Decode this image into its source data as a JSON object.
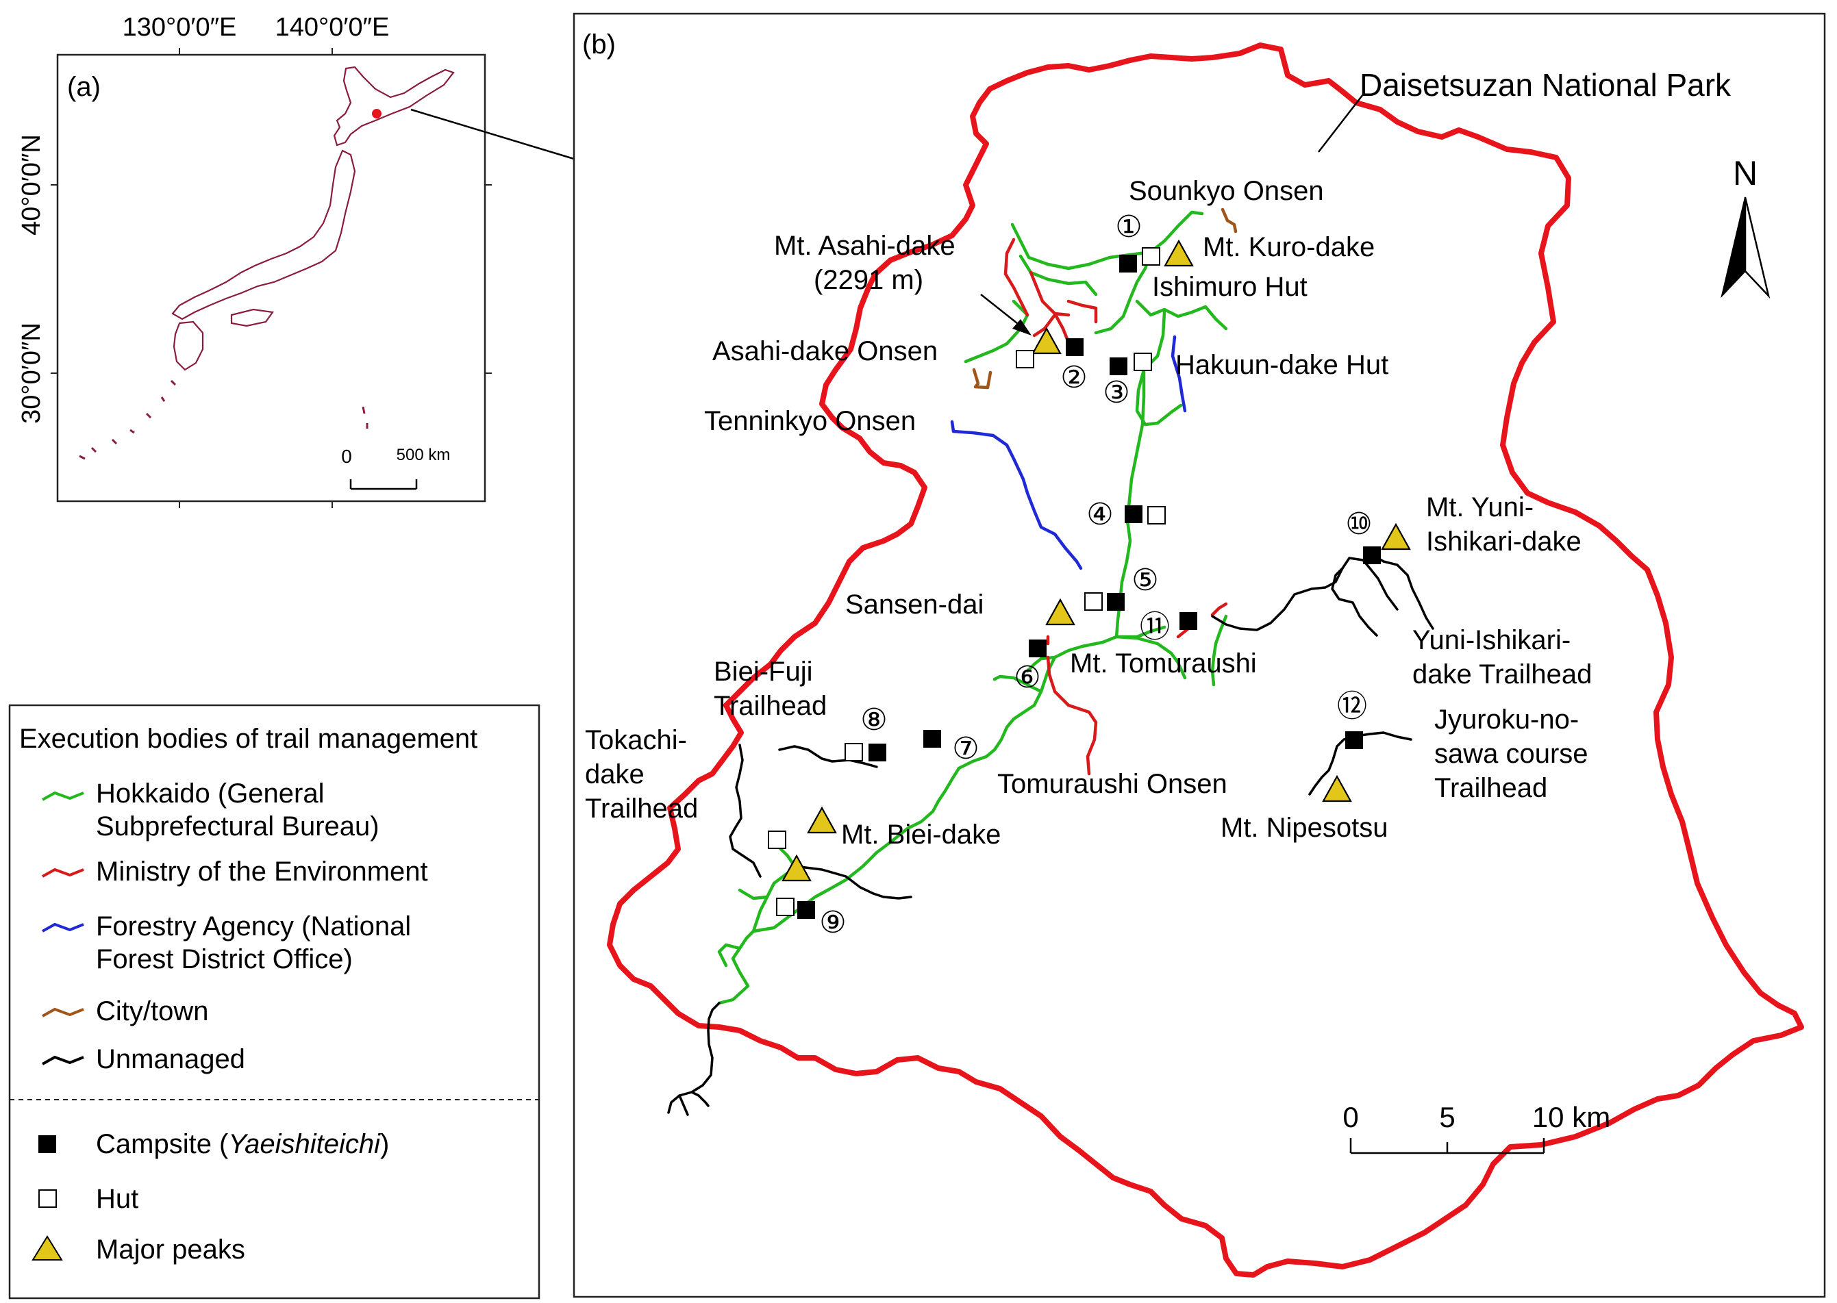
{
  "inset_a": {
    "panel_label": "(a)",
    "lon_labels": [
      "130°0′0″E",
      "140°0′0″E"
    ],
    "lat_labels": [
      "40°0′0″N",
      "30°0′0″N"
    ],
    "scale": {
      "zero": "0",
      "end": "500 km"
    }
  },
  "map_b": {
    "panel_label": "(b)",
    "park_name": "Daisetsuzan National Park",
    "north_label": "N",
    "scale": {
      "ticks": [
        "0",
        "5",
        "10 km"
      ]
    },
    "place_labels": {
      "sounkyo": "Sounkyo Onsen",
      "asahidake": "Mt. Asahi-dake",
      "asahidake_elev": "(2291 m)",
      "kurodake": "Mt. Kuro-dake",
      "ishimuro": "Ishimuro Hut",
      "asahidake_onsen": "Asahi-dake Onsen",
      "hakuun": "Hakuun-dake Hut",
      "tenninkyo": "Tenninkyo Onsen",
      "yuni_1": "Mt. Yuni-",
      "yuni_2": "Ishikari-dake",
      "sansen": "Sansen-dai",
      "yuni_th_1": "Yuni-Ishikari-",
      "yuni_th_2": "dake Trailhead",
      "tomuraushi": "Mt. Tomuraushi",
      "biei_fuji_1": "Biei-Fuji",
      "biei_fuji_2": "Trailhead",
      "jyuroku_1": "Jyuroku-no-",
      "jyuroku_2": "sawa course",
      "jyuroku_3": "Trailhead",
      "tokachi_1": "Tokachi-",
      "tokachi_2": "dake",
      "tokachi_3": "Trailhead",
      "tomuraushi_onsen": "Tomuraushi Onsen",
      "nipesotsu": "Mt. Nipesotsu",
      "bieidake": "Mt. Biei-dake"
    },
    "site_numbers": [
      "①",
      "②",
      "③",
      "④",
      "⑤",
      "⑥",
      "⑦",
      "⑧",
      "⑨",
      "⑩",
      "⑪",
      "⑫"
    ]
  },
  "legend": {
    "title": "Execution bodies of trail management",
    "hokkaido_1": "Hokkaido (General",
    "hokkaido_2": "Subprefectural Bureau)",
    "moe": "Ministry of the Environment",
    "forestry_1": "Forestry Agency (National",
    "forestry_2": "Forest District Office)",
    "city": "City/town",
    "unmanaged": "Unmanaged",
    "campsite_pre": "Campsite (",
    "campsite_italic": "Yaeishiteichi",
    "campsite_post": ")",
    "hut": "Hut",
    "peaks": "Major peaks"
  },
  "colors": {
    "park_boundary": "#e8141b",
    "hokkaido": "#22b81e",
    "moe": "#d91a1a",
    "forestry": "#1f2ad6",
    "city": "#a0561a",
    "unmanaged": "#000000",
    "peak_fill": "#e3c61a",
    "japan_outline": "#8a1c3c"
  }
}
